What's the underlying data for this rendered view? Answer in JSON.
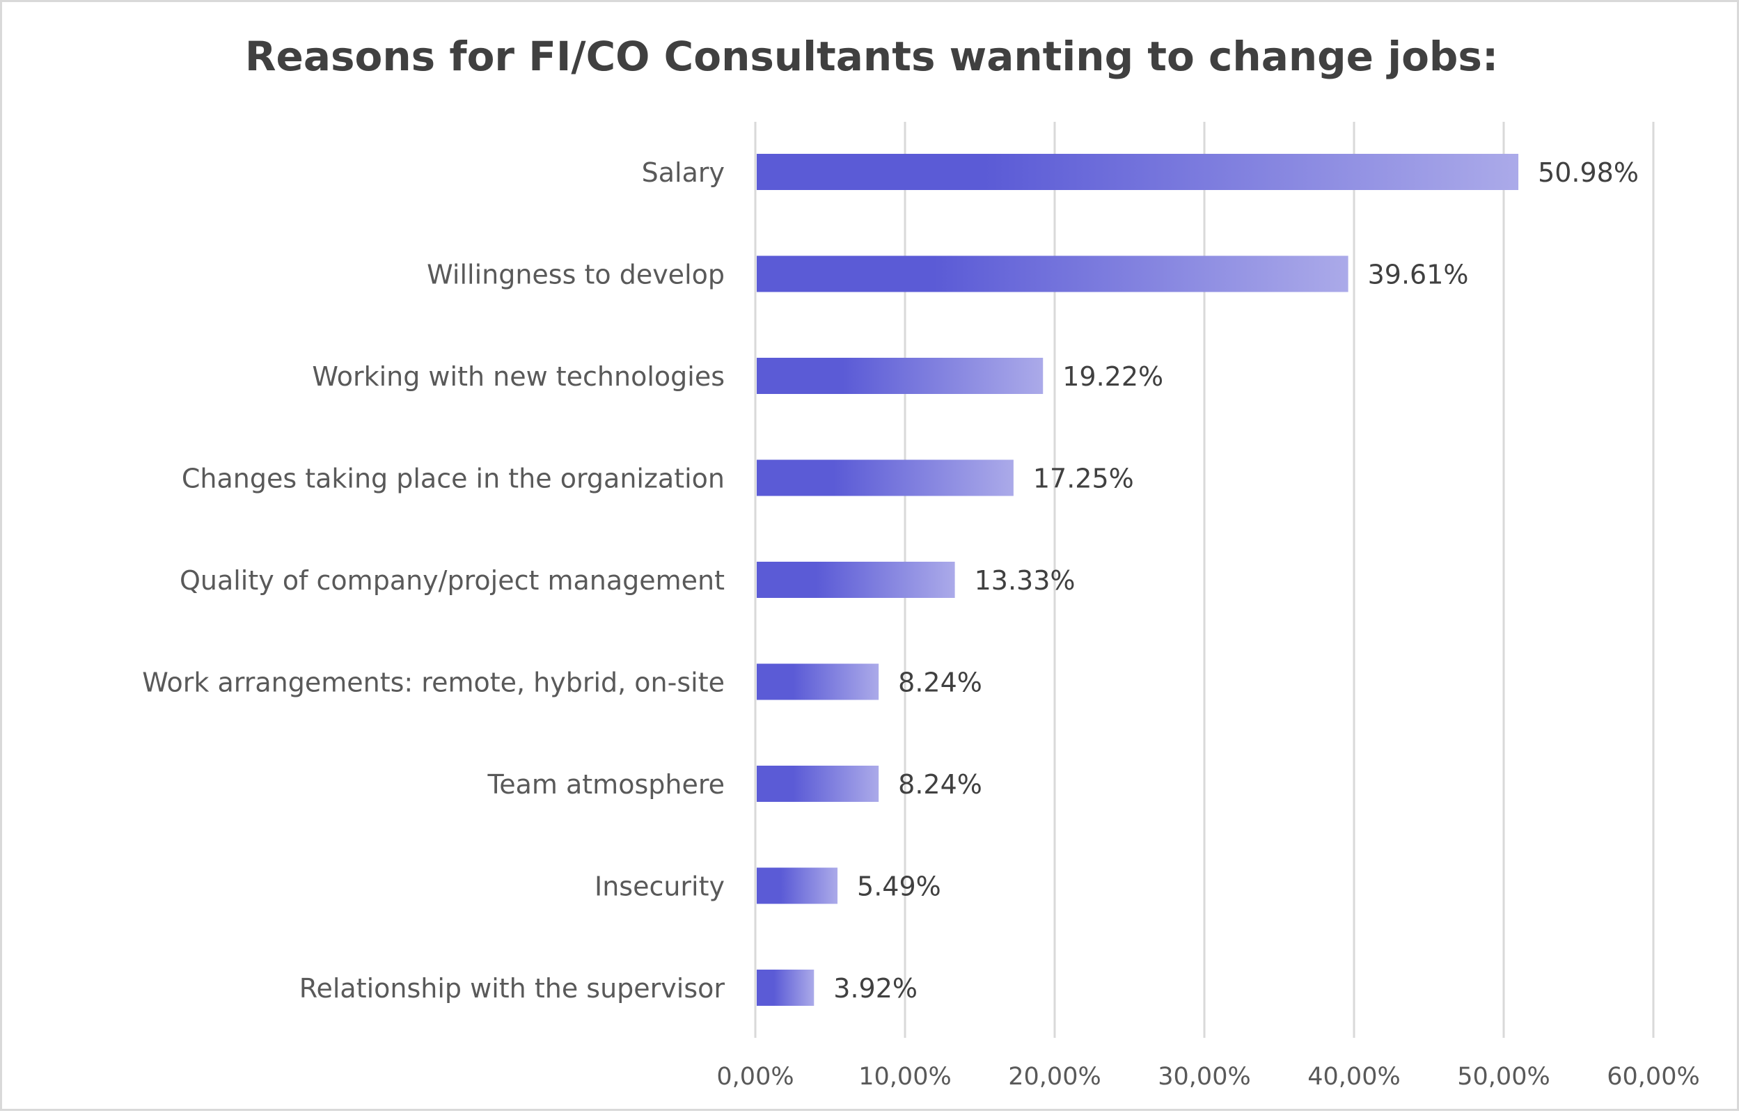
{
  "chart_data": {
    "type": "bar",
    "orientation": "horizontal",
    "title": "Reasons for FI/CO Consultants wanting to change jobs:",
    "xlabel": "",
    "ylabel": "",
    "categories": [
      "Salary",
      "Willingness to develop",
      "Working with new technologies",
      "Changes taking place in the organization",
      "Quality of company/project management",
      "Work arrangements: remote, hybrid, on-site",
      "Team atmosphere",
      "Insecurity",
      "Relationship with the supervisor"
    ],
    "values": [
      50.98,
      39.61,
      19.22,
      17.25,
      13.33,
      8.24,
      8.24,
      5.49,
      3.92
    ],
    "value_labels": [
      "50.98%",
      "39.61%",
      "19.22%",
      "17.25%",
      "13.33%",
      "8.24%",
      "8.24%",
      "5.49%",
      "3.92%"
    ],
    "xlim": [
      0,
      60
    ],
    "xticks": [
      0,
      10,
      20,
      30,
      40,
      50,
      60
    ],
    "xtick_labels": [
      "0,00%",
      "10,00%",
      "20,00%",
      "30,00%",
      "40,00%",
      "50,00%",
      "60,00%"
    ],
    "grid": "vertical",
    "legend": "none",
    "colors": {
      "bar_start": "#5b5bd6",
      "bar_end": "#abaae9",
      "grid": "#d9d9d9",
      "title": "#404040",
      "label": "#595959",
      "value": "#404040"
    }
  }
}
